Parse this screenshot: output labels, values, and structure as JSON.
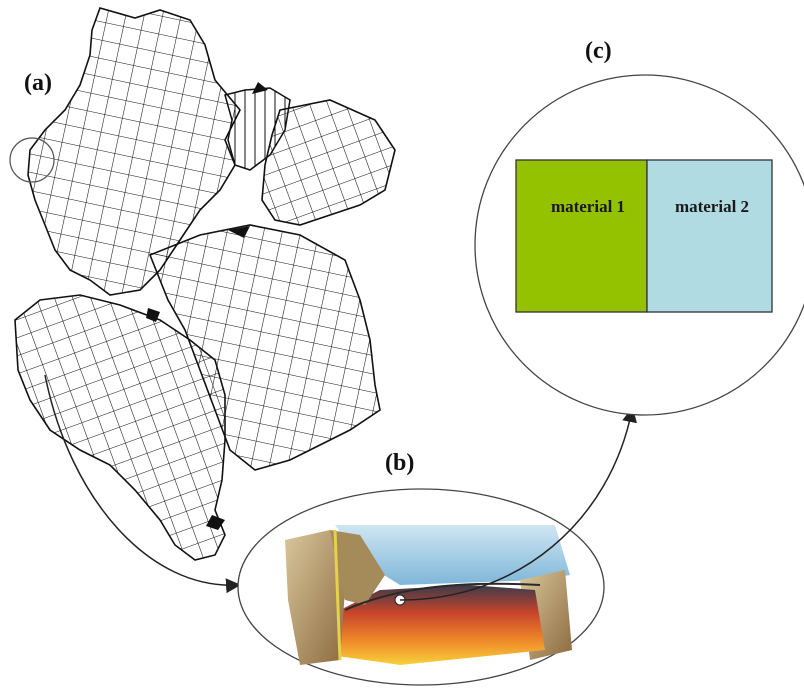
{
  "labels": {
    "a": "(a)",
    "b": "(b)",
    "c": "(c)"
  },
  "materials": {
    "left": {
      "label": "material 1",
      "color": "#94c100"
    },
    "right": {
      "label": "material 2",
      "color": "#b0dbe2"
    }
  },
  "icons": [
    "world-map-grid",
    "cross-section-block",
    "arrow"
  ]
}
